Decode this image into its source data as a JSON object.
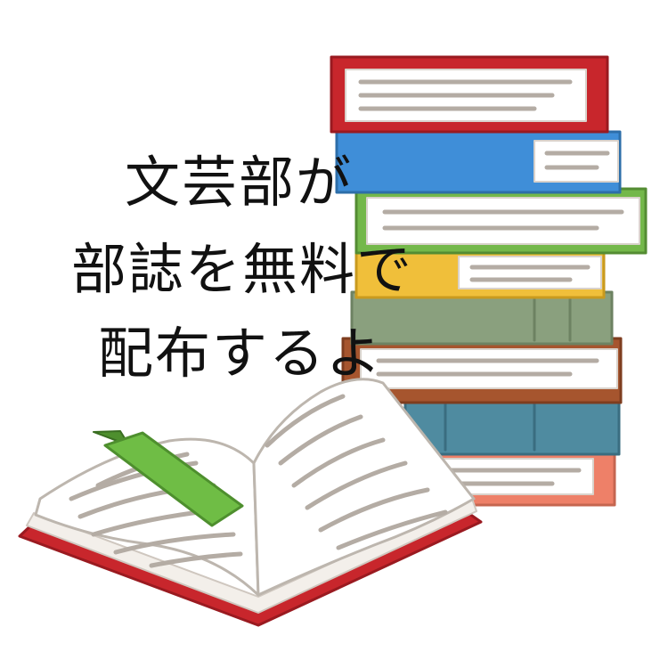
{
  "headline": {
    "line1": "文芸部が",
    "line2": "部誌を無料で",
    "line3": "配布するよ"
  },
  "illustration": {
    "subject": "stack of books with an open book",
    "icon": "books-icon"
  },
  "colors": {
    "background": "#ffffff",
    "text": "#111111",
    "book_red": "#c8262c",
    "book_blue": "#3f8ed8",
    "book_green": "#74b84a",
    "book_yellow": "#f0bf3a",
    "book_sage": "#8aa07e",
    "book_brown": "#a6552e",
    "book_teal": "#4f8ba0",
    "book_salmon": "#ee8068",
    "bookmark": "#6fbd45",
    "page_line": "#b4aca4"
  }
}
